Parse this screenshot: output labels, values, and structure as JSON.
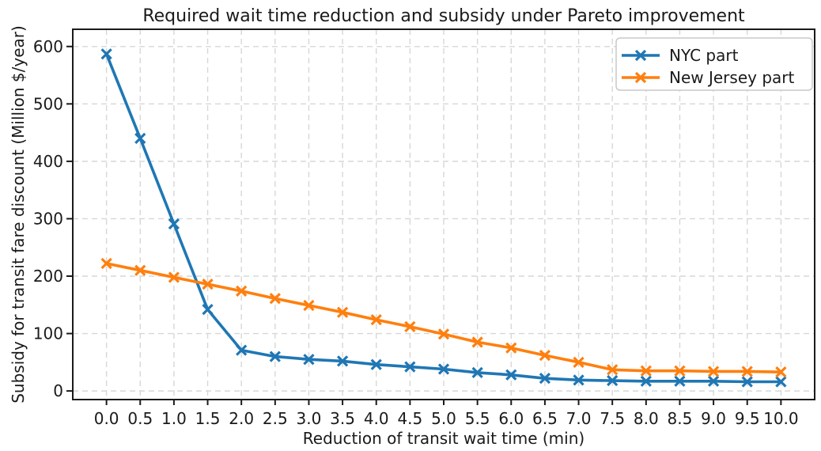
{
  "chart_data": {
    "type": "line",
    "title": "Required wait time reduction and subsidy under Pareto improvement",
    "xlabel": "Reduction of transit wait time (min)",
    "ylabel": "Subsidy for transit fare discount (Million $/year)",
    "x": [
      0.0,
      0.5,
      1.0,
      1.5,
      2.0,
      2.5,
      3.0,
      3.5,
      4.0,
      4.5,
      5.0,
      5.5,
      6.0,
      6.5,
      7.0,
      7.5,
      8.0,
      8.5,
      9.0,
      9.5,
      10.0
    ],
    "series": [
      {
        "name": "NYC part",
        "color": "#1f77b4",
        "marker": "x",
        "values": [
          587,
          440,
          291,
          142,
          71,
          60,
          55,
          52,
          46,
          42,
          38,
          32,
          28,
          22,
          19,
          18,
          17,
          17,
          17,
          16,
          16
        ]
      },
      {
        "name": "New Jersey part",
        "color": "#ff7f0e",
        "marker": "x",
        "values": [
          222,
          210,
          198,
          186,
          174,
          161,
          149,
          137,
          124,
          112,
          99,
          85,
          75,
          62,
          50,
          37,
          35,
          35,
          34,
          34,
          33
        ]
      }
    ],
    "xlim": [
      -0.5,
      10.5
    ],
    "ylim": [
      -15,
      630
    ],
    "x_ticks": [
      0.0,
      0.5,
      1.0,
      1.5,
      2.0,
      2.5,
      3.0,
      3.5,
      4.0,
      4.5,
      5.0,
      5.5,
      6.0,
      6.5,
      7.0,
      7.5,
      8.0,
      8.5,
      9.0,
      9.5,
      10.0
    ],
    "x_tick_labels": [
      "0.0",
      "0.5",
      "1.0",
      "1.5",
      "2.0",
      "2.5",
      "3.0",
      "3.5",
      "4.0",
      "4.5",
      "5.0",
      "5.5",
      "6.0",
      "6.5",
      "7.0",
      "7.5",
      "8.0",
      "8.5",
      "9.0",
      "9.5",
      "10.0"
    ],
    "y_ticks": [
      0,
      100,
      200,
      300,
      400,
      500,
      600
    ],
    "y_tick_labels": [
      "0",
      "100",
      "200",
      "300",
      "400",
      "500",
      "600"
    ],
    "grid": {
      "on": true,
      "linestyle": "dashed",
      "color": "#d7d7d7"
    },
    "legend": {
      "position": "upper right"
    },
    "axis_color": "#1a1a1a",
    "background_color": "#ffffff"
  }
}
